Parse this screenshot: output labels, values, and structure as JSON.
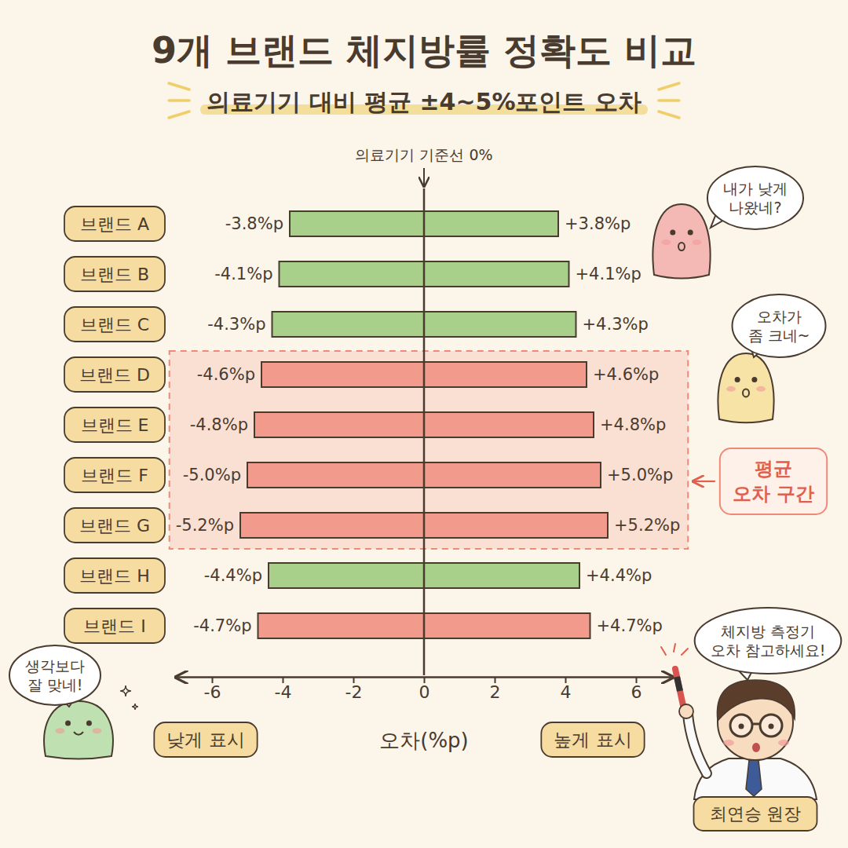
{
  "chart_data": {
    "type": "bar",
    "orientation": "horizontal",
    "title": "9개 브랜드 체지방률 정확도 비교",
    "subtitle": "의료기기 대비 평균 ±4~5%포인트 오차",
    "categories": [
      "브랜드 A",
      "브랜드 B",
      "브랜드 C",
      "브랜드 D",
      "브랜드 E",
      "브랜드 F",
      "브랜드 G",
      "브랜드 H",
      "브랜드 I"
    ],
    "series": [
      {
        "name": "낮게 표시",
        "values": [
          -3.8,
          -4.1,
          -4.3,
          -4.6,
          -4.8,
          -5.0,
          -5.2,
          -4.4,
          -4.7
        ],
        "value_labels": [
          "-3.8%p",
          "-4.1%p",
          "-4.3%p",
          "-4.6%p",
          "-4.8%p",
          "-5.0%p",
          "-5.2%p",
          "-4.4%p",
          "-4.7%p"
        ]
      },
      {
        "name": "높게 표시",
        "values": [
          3.8,
          4.1,
          4.3,
          4.6,
          4.8,
          5.0,
          5.2,
          4.4,
          4.7
        ],
        "value_labels": [
          "+3.8%p",
          "+4.1%p",
          "+4.3%p",
          "+4.6%p",
          "+4.8%p",
          "+5.0%p",
          "+5.2%p",
          "+4.4%p",
          "+4.7%p"
        ]
      }
    ],
    "colors": [
      "#a8d08a",
      "#a8d08a",
      "#a8d08a",
      "#f29a8c",
      "#f29a8c",
      "#f29a8c",
      "#f29a8c",
      "#a8d08a",
      "#f29a8c"
    ],
    "data_labels": true,
    "xlim": [
      -7,
      7
    ],
    "xticks": [
      -6,
      -4,
      -2,
      0,
      2,
      4,
      6
    ],
    "x_label": "오차(%p)",
    "reference_line": {
      "value": 0,
      "label": "의료기기 기준선 0%"
    },
    "highlight": {
      "from": "브랜드 D",
      "to": "브랜드 G",
      "label": [
        "평균",
        "오차 구간"
      ]
    },
    "annotations": [
      {
        "text": [
          "내가 낮게",
          "나왔네?"
        ]
      },
      {
        "text": [
          "오차가",
          "좀 크네~"
        ]
      },
      {
        "text": [
          "생각보다",
          "잘 맞네!"
        ]
      },
      {
        "text": [
          "체지방 측정기",
          "오차 참고하세요!"
        ]
      },
      {
        "text": [
          "최연승 원장"
        ]
      }
    ]
  }
}
